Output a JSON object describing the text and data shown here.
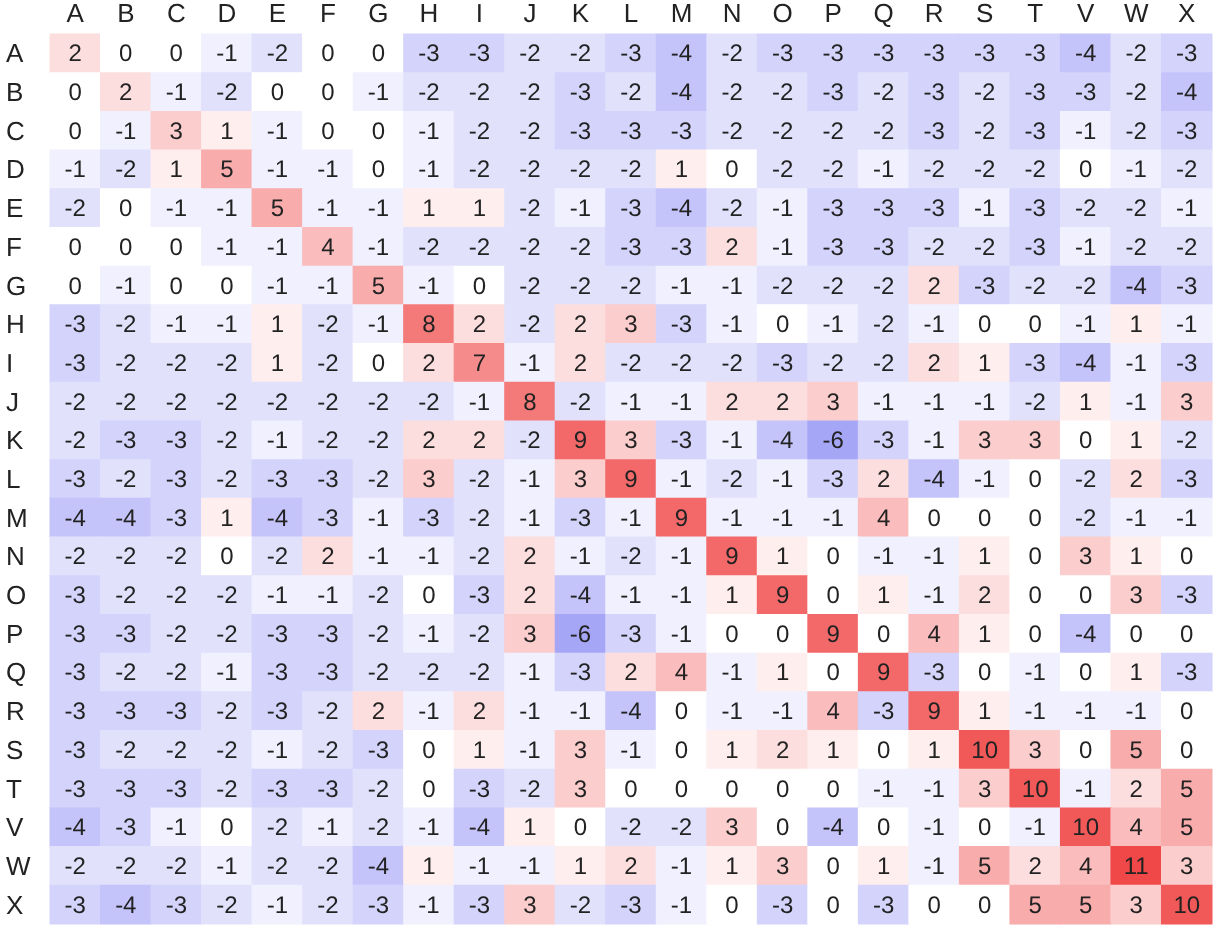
{
  "chart_data": {
    "type": "heatmap",
    "data_labels": true,
    "categories": [
      "A",
      "B",
      "C",
      "D",
      "E",
      "F",
      "G",
      "H",
      "I",
      "J",
      "K",
      "L",
      "M",
      "N",
      "O",
      "P",
      "Q",
      "R",
      "S",
      "T",
      "V",
      "W",
      "X"
    ],
    "y_categories": [
      "A",
      "B",
      "C",
      "D",
      "E",
      "F",
      "G",
      "H",
      "I",
      "J",
      "K",
      "L",
      "M",
      "N",
      "O",
      "P",
      "Q",
      "R",
      "S",
      "T",
      "V",
      "W",
      "X"
    ],
    "cells": [
      [
        2,
        0,
        0,
        -1,
        -2,
        0,
        0,
        -3,
        -3,
        -2,
        -2,
        -3,
        -4,
        -2,
        -3,
        -3,
        -3,
        -3,
        -3,
        -3,
        -4,
        -2,
        -3
      ],
      [
        0,
        2,
        -1,
        -2,
        0,
        0,
        -1,
        -2,
        -2,
        -2,
        -3,
        -2,
        -4,
        -2,
        -2,
        -3,
        -2,
        -3,
        -2,
        -3,
        -3,
        -2,
        -4
      ],
      [
        0,
        -1,
        3,
        1,
        -1,
        0,
        0,
        -1,
        -2,
        -2,
        -3,
        -3,
        -3,
        -2,
        -2,
        -2,
        -2,
        -3,
        -2,
        -3,
        -1,
        -2,
        -3
      ],
      [
        -1,
        -2,
        1,
        5,
        -1,
        -1,
        0,
        -1,
        -2,
        -2,
        -2,
        -2,
        1,
        0,
        -2,
        -2,
        -1,
        -2,
        -2,
        -2,
        0,
        -1,
        -2
      ],
      [
        -2,
        0,
        -1,
        -1,
        5,
        -1,
        -1,
        1,
        1,
        -2,
        -1,
        -3,
        -4,
        -2,
        -1,
        -3,
        -3,
        -3,
        -1,
        -3,
        -2,
        -2,
        -1
      ],
      [
        0,
        0,
        0,
        -1,
        -1,
        4,
        -1,
        -2,
        -2,
        -2,
        -2,
        -3,
        -3,
        2,
        -1,
        -3,
        -3,
        -2,
        -2,
        -3,
        -1,
        -2,
        -2
      ],
      [
        0,
        -1,
        0,
        0,
        -1,
        -1,
        5,
        -1,
        0,
        -2,
        -2,
        -2,
        -1,
        -1,
        -2,
        -2,
        -2,
        2,
        -3,
        -2,
        -2,
        -4,
        -3
      ],
      [
        -3,
        -2,
        -1,
        -1,
        1,
        -2,
        -1,
        8,
        2,
        -2,
        2,
        3,
        -3,
        -1,
        0,
        -1,
        -2,
        -1,
        0,
        0,
        -1,
        1,
        -1
      ],
      [
        -3,
        -2,
        -2,
        -2,
        1,
        -2,
        0,
        2,
        7,
        -1,
        2,
        -2,
        -2,
        -2,
        -3,
        -2,
        -2,
        2,
        1,
        -3,
        -4,
        -1,
        -3
      ],
      [
        -2,
        -2,
        -2,
        -2,
        -2,
        -2,
        -2,
        -2,
        -1,
        8,
        -2,
        -1,
        -1,
        2,
        2,
        3,
        -1,
        -1,
        -1,
        -2,
        1,
        -1,
        3
      ],
      [
        -2,
        -3,
        -3,
        -2,
        -1,
        -2,
        -2,
        2,
        2,
        -2,
        9,
        3,
        -3,
        -1,
        -4,
        -6,
        -3,
        -1,
        3,
        3,
        0,
        1,
        -2
      ],
      [
        -3,
        -2,
        -3,
        -2,
        -3,
        -3,
        -2,
        3,
        -2,
        -1,
        3,
        9,
        -1,
        -2,
        -1,
        -3,
        2,
        -4,
        -1,
        0,
        -2,
        2,
        -3
      ],
      [
        -4,
        -4,
        -3,
        1,
        -4,
        -3,
        -1,
        -3,
        -2,
        -1,
        -3,
        -1,
        9,
        -1,
        -1,
        -1,
        4,
        0,
        0,
        0,
        -2,
        -1,
        -1
      ],
      [
        -2,
        -2,
        -2,
        0,
        -2,
        2,
        -1,
        -1,
        -2,
        2,
        -1,
        -2,
        -1,
        9,
        1,
        0,
        -1,
        -1,
        1,
        0,
        3,
        1,
        0
      ],
      [
        -3,
        -2,
        -2,
        -2,
        -1,
        -1,
        -2,
        0,
        -3,
        2,
        -4,
        -1,
        -1,
        1,
        9,
        0,
        1,
        -1,
        2,
        0,
        0,
        3,
        -3
      ],
      [
        -3,
        -3,
        -2,
        -2,
        -3,
        -3,
        -2,
        -1,
        -2,
        3,
        -6,
        -3,
        -1,
        0,
        0,
        9,
        0,
        4,
        1,
        0,
        -4,
        0,
        0
      ],
      [
        -3,
        -2,
        -2,
        -1,
        -3,
        -3,
        -2,
        -2,
        -2,
        -1,
        -3,
        2,
        4,
        -1,
        1,
        0,
        9,
        -3,
        0,
        -1,
        0,
        1,
        -3
      ],
      [
        -3,
        -3,
        -3,
        -2,
        -3,
        -2,
        2,
        -1,
        2,
        -1,
        -1,
        -4,
        0,
        -1,
        -1,
        4,
        -3,
        9,
        1,
        -1,
        -1,
        -1,
        0
      ],
      [
        -3,
        -2,
        -2,
        -2,
        -1,
        -2,
        -3,
        0,
        1,
        -1,
        3,
        -1,
        0,
        1,
        2,
        1,
        0,
        1,
        10,
        3,
        0,
        5,
        0
      ],
      [
        -3,
        -3,
        -3,
        -2,
        -3,
        -3,
        -2,
        0,
        -3,
        -2,
        3,
        0,
        0,
        0,
        0,
        0,
        -1,
        -1,
        3,
        10,
        -1,
        2,
        5
      ],
      [
        -4,
        -3,
        -1,
        0,
        -2,
        -1,
        -2,
        -1,
        -4,
        1,
        0,
        -2,
        -2,
        3,
        0,
        -4,
        0,
        -1,
        0,
        -1,
        10,
        4,
        5
      ],
      [
        -2,
        -2,
        -2,
        -1,
        -2,
        -2,
        -4,
        1,
        -1,
        -1,
        1,
        2,
        -1,
        1,
        3,
        0,
        1,
        -1,
        5,
        2,
        4,
        11,
        3
      ],
      [
        -3,
        -4,
        -3,
        -2,
        -1,
        -2,
        -3,
        -1,
        -3,
        3,
        -2,
        -3,
        -1,
        0,
        -3,
        0,
        -3,
        0,
        0,
        5,
        5,
        3,
        10
      ]
    ]
  }
}
